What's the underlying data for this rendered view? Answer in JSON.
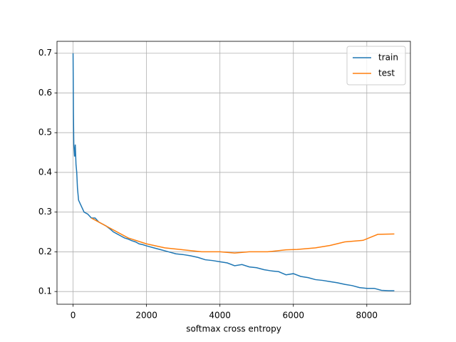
{
  "chart_data": {
    "type": "line",
    "xlabel": "softmax cross entropy",
    "series": [
      {
        "name": "train",
        "color": "#1f77b4",
        "x": [
          0,
          10,
          20,
          40,
          60,
          80,
          100,
          120,
          150,
          200,
          300,
          400,
          500,
          600,
          700,
          800,
          900,
          1000,
          1100,
          1200,
          1300,
          1400,
          1500,
          1600,
          1700,
          1800,
          1900,
          2000,
          2200,
          2400,
          2600,
          2800,
          3000,
          3200,
          3400,
          3600,
          3800,
          4000,
          4200,
          4400,
          4600,
          4800,
          5000,
          5200,
          5400,
          5600,
          5800,
          6000,
          6200,
          6400,
          6600,
          6800,
          7000,
          7200,
          7400,
          7600,
          7800,
          8000,
          8200,
          8400,
          8600,
          8750
        ],
        "values": [
          0.7,
          0.55,
          0.47,
          0.44,
          0.47,
          0.42,
          0.4,
          0.36,
          0.33,
          0.32,
          0.3,
          0.295,
          0.285,
          0.285,
          0.275,
          0.27,
          0.265,
          0.258,
          0.25,
          0.245,
          0.24,
          0.235,
          0.232,
          0.228,
          0.225,
          0.22,
          0.218,
          0.215,
          0.21,
          0.205,
          0.2,
          0.195,
          0.193,
          0.19,
          0.186,
          0.18,
          0.178,
          0.175,
          0.172,
          0.165,
          0.168,
          0.162,
          0.16,
          0.155,
          0.152,
          0.15,
          0.142,
          0.145,
          0.138,
          0.135,
          0.13,
          0.128,
          0.125,
          0.122,
          0.118,
          0.115,
          0.11,
          0.108,
          0.108,
          0.103,
          0.102,
          0.102
        ]
      },
      {
        "name": "test",
        "color": "#ff7f0e",
        "x": [
          500,
          1000,
          1500,
          2000,
          2500,
          3000,
          3500,
          4000,
          4400,
          4800,
          5300,
          5800,
          6100,
          6600,
          7000,
          7400,
          7900,
          8300,
          8750
        ],
        "values": [
          0.285,
          0.26,
          0.235,
          0.22,
          0.21,
          0.205,
          0.2,
          0.2,
          0.197,
          0.2,
          0.2,
          0.205,
          0.206,
          0.21,
          0.216,
          0.225,
          0.229,
          0.244,
          0.245
        ]
      }
    ],
    "xlim": [
      -437.5,
      9187.5
    ],
    "xticks": [
      0,
      2000,
      4000,
      6000,
      8000
    ],
    "ylim": [
      0.068,
      0.73
    ],
    "yticks": [
      0.1,
      0.2,
      0.3,
      0.4,
      0.5,
      0.6,
      0.7
    ],
    "grid": true,
    "legend": "upper right"
  }
}
